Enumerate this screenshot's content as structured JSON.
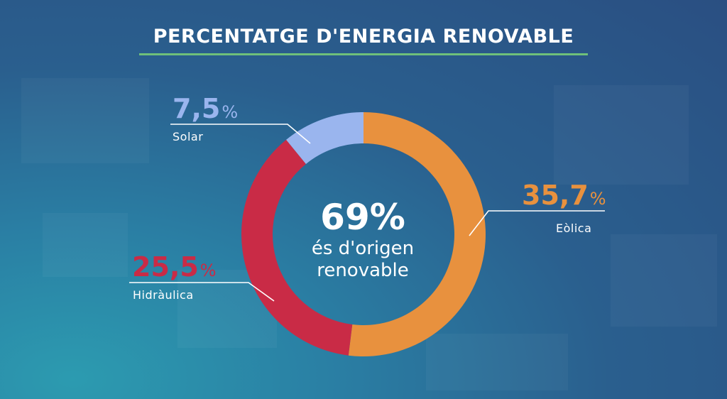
{
  "title": "PERCENTATGE D'ENERGIA RENOVABLE",
  "center": {
    "value": "69%",
    "line1": "és d'origen",
    "line2": "renovable"
  },
  "chart_data": {
    "type": "pie",
    "title": "PERCENTATGE D'ENERGIA RENOVABLE",
    "donut": true,
    "start": "top",
    "direction": "clockwise",
    "slices": [
      {
        "label": "Eòlica",
        "value": 35.7,
        "display": "35,7",
        "unit": "%",
        "color": "#e8913e"
      },
      {
        "label": "Hidràulica",
        "value": 25.5,
        "display": "25,5",
        "unit": "%",
        "color": "#c92b46"
      },
      {
        "label": "Solar",
        "value": 7.5,
        "display": "7,5",
        "unit": "%",
        "color": "#9ab5ee"
      }
    ]
  },
  "colors": {
    "accent_rule": "#6fc07a",
    "leader": "#ffffff"
  }
}
